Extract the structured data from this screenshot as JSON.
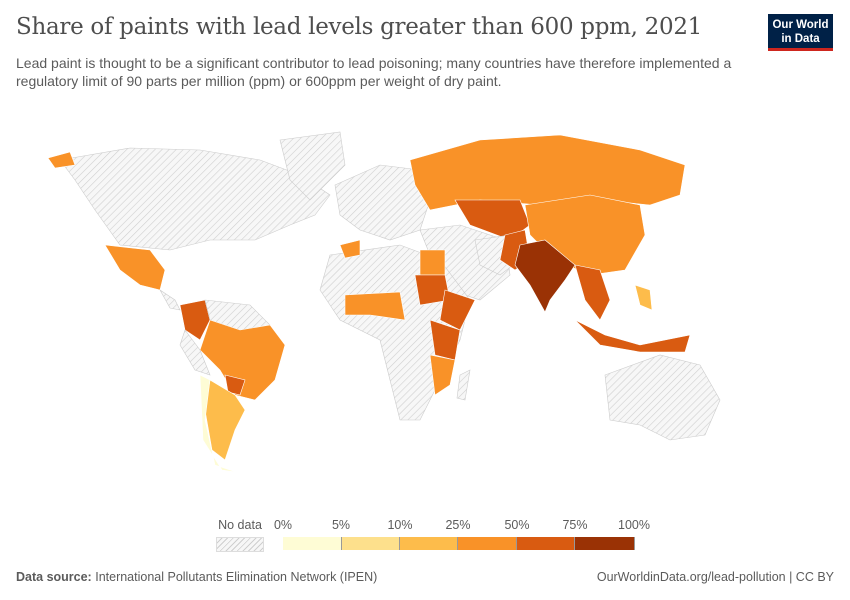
{
  "header": {
    "title": "Share of paints with lead levels greater than 600 ppm, 2021",
    "subtitle": "Lead paint is thought to be a significant contributor to lead poisoning; many countries have therefore implemented a regulatory limit of 90 parts per million (ppm) or 600ppm per weight of dry paint.",
    "logo": "Our World in Data"
  },
  "legend": {
    "no_data_label": "No data",
    "ticks": [
      "0%",
      "5%",
      "10%",
      "25%",
      "50%",
      "75%",
      "100%"
    ],
    "colors": [
      "#fefcd5",
      "#fde08c",
      "#fdbc4b",
      "#f99228",
      "#d95b11",
      "#9a3205"
    ]
  },
  "footer": {
    "source_label": "Data source:",
    "source": "International Pollutants Elimination Network (IPEN)",
    "url": "OurWorldinData.org/lead-pollution | CC BY"
  }
}
